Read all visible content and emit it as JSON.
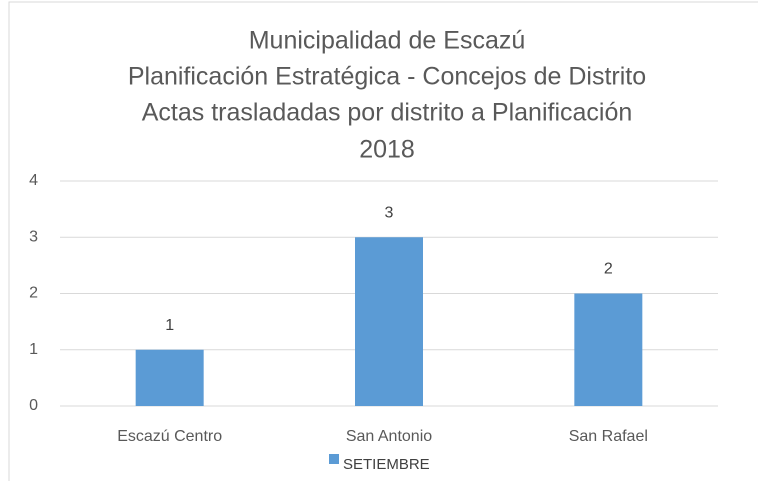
{
  "chart_data": {
    "type": "bar",
    "title": [
      "Municipalidad de Escazú",
      "Planificación Estratégica - Concejos de Distrito",
      "Actas trasladadas por distrito a Planificación",
      "2018"
    ],
    "categories": [
      "Escazú Centro",
      "San Antonio",
      "San Rafael"
    ],
    "series": [
      {
        "name": "SETIEMBRE",
        "color": "#5b9bd5",
        "values": [
          1,
          3,
          2
        ]
      }
    ],
    "ylim": [
      0,
      4
    ],
    "yticks": [
      0,
      1,
      2,
      3,
      4
    ],
    "grid": true,
    "legend": "bottom"
  }
}
